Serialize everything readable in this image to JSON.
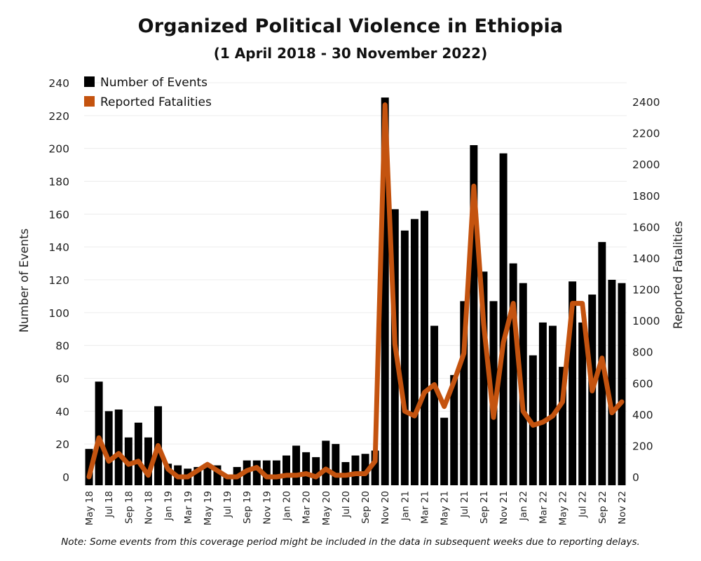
{
  "chart_data": {
    "type": "bar",
    "title": "Organized Political Violence in Ethiopia",
    "subtitle": "(1 April 2018 - 30 November 2022)",
    "ylabel_left": "Number of Events",
    "ylabel_right": "Reported Fatalities",
    "ylim_left": [
      0,
      240
    ],
    "ylim_right": [
      0,
      2480
    ],
    "yticks_left": [
      0,
      20,
      40,
      60,
      80,
      100,
      120,
      140,
      160,
      180,
      200,
      220,
      240
    ],
    "yticks_right": [
      0,
      200,
      400,
      600,
      800,
      1000,
      1200,
      1400,
      1600,
      1800,
      2000,
      2200,
      2400
    ],
    "grid": true,
    "legend_position": "top-left",
    "colors": {
      "events": "#000000",
      "fatalities": "#c4530f"
    },
    "x_labels": [
      "May 18",
      "Jul 18",
      "Sep 18",
      "Nov 18",
      "Jan 19",
      "Mar 19",
      "May 19",
      "Jul 19",
      "Sep 19",
      "Nov 19",
      "Jan 20",
      "Mar 20",
      "May 20",
      "Jul 20",
      "Sep 20",
      "Nov 20",
      "Jan 21",
      "Mar 21",
      "May 21",
      "Jul 21",
      "Sep 21",
      "Nov 21",
      "Jan 22",
      "Mar 22",
      "May 22",
      "Jul 22",
      "Sep 22",
      "Nov 22"
    ],
    "series": [
      {
        "name": "Number of Events",
        "type": "bar",
        "axis": "left",
        "values": [
          17,
          58,
          40,
          41,
          24,
          33,
          24,
          43,
          8,
          7,
          5,
          6,
          8,
          7,
          1,
          6,
          10,
          10,
          10,
          10,
          13,
          19,
          15,
          12,
          22,
          20,
          9,
          13,
          14,
          16,
          231,
          163,
          150,
          157,
          162,
          92,
          36,
          62,
          107,
          202,
          125,
          107,
          197,
          130,
          118,
          74,
          94,
          92,
          67,
          119,
          94,
          111,
          143,
          120,
          118
        ]
      },
      {
        "name": "Reported Fatalities",
        "type": "line",
        "axis": "right",
        "values": [
          0,
          250,
          100,
          150,
          80,
          100,
          10,
          200,
          50,
          0,
          0,
          40,
          80,
          40,
          0,
          0,
          40,
          60,
          0,
          0,
          10,
          10,
          20,
          0,
          50,
          10,
          10,
          20,
          20,
          100,
          2380,
          850,
          420,
          390,
          540,
          590,
          450,
          610,
          790,
          1860,
          980,
          380,
          860,
          1110,
          420,
          330,
          350,
          390,
          480,
          1110,
          1110,
          550,
          760,
          410,
          480
        ]
      }
    ]
  },
  "note": "Note: Some events from this coverage period might be included in the data in subsequent weeks due to reporting delays."
}
